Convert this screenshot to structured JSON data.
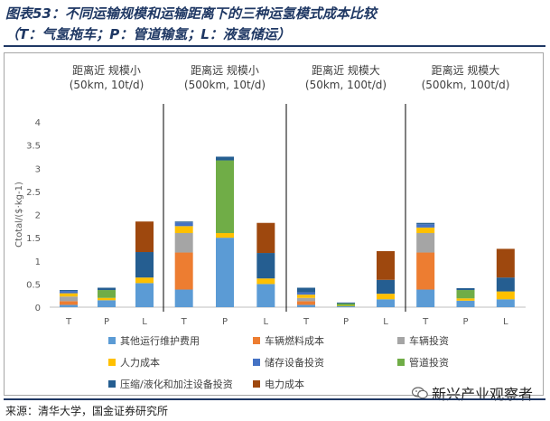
{
  "header": {
    "title": "图表53：不同运输规模和运输距离下的三种运氢模式成本比较",
    "subtitle": "（T：气氢拖车；P：管道输氢；L：液氢储运）"
  },
  "footer": {
    "source": "来源：清华大学，国金证券研究所",
    "watermark": "新兴产业观察者"
  },
  "chart_data": {
    "type": "bar",
    "stacked": true,
    "ylabel": "Ctotal/($·kg-1)",
    "ylim": [
      0,
      4
    ],
    "yticks": [
      "0",
      "0.5",
      "1",
      "1.5",
      "2",
      "2.5",
      "3",
      "3.5",
      "4"
    ],
    "categories": [
      "T",
      "P",
      "L"
    ],
    "panels": [
      {
        "title_line1": "距离近  规模小",
        "title_line2": "(50km, 10t/d)"
      },
      {
        "title_line1": "距离远  规模小",
        "title_line2": "(500km, 10t/d)"
      },
      {
        "title_line1": "距离近  规模大",
        "title_line2": "(50km, 100t/d)"
      },
      {
        "title_line1": "距离远  规模大",
        "title_line2": "(500km, 100t/d)"
      }
    ],
    "series": [
      {
        "name": "其他运行维护费用",
        "color": "#5b9bd5",
        "values": [
          [
            0.05,
            0.15,
            0.52
          ],
          [
            0.38,
            1.5,
            0.5
          ],
          [
            0.05,
            0.02,
            0.17
          ],
          [
            0.38,
            0.14,
            0.17
          ]
        ]
      },
      {
        "name": "车辆燃料成本",
        "color": "#ed7d31",
        "values": [
          [
            0.08,
            0.0,
            0.0
          ],
          [
            0.8,
            0.0,
            0.0
          ],
          [
            0.08,
            0.0,
            0.0
          ],
          [
            0.8,
            0.0,
            0.0
          ]
        ]
      },
      {
        "name": "车辆投资",
        "color": "#a5a5a5",
        "values": [
          [
            0.1,
            0.0,
            0.0
          ],
          [
            0.42,
            0.0,
            0.0
          ],
          [
            0.07,
            0.0,
            0.0
          ],
          [
            0.42,
            0.0,
            0.0
          ]
        ]
      },
      {
        "name": "人力成本",
        "color": "#ffc000",
        "values": [
          [
            0.07,
            0.05,
            0.12
          ],
          [
            0.15,
            0.1,
            0.12
          ],
          [
            0.07,
            0.01,
            0.12
          ],
          [
            0.12,
            0.05,
            0.17
          ]
        ]
      },
      {
        "name": "储存设备投资",
        "color": "#4472c4",
        "values": [
          [
            0.05,
            0.0,
            0.0
          ],
          [
            0.08,
            0.0,
            0.0
          ],
          [
            0.05,
            0.0,
            0.0
          ],
          [
            0.07,
            0.0,
            0.0
          ]
        ]
      },
      {
        "name": "管道投资",
        "color": "#70ad47",
        "values": [
          [
            0.0,
            0.17,
            0.0
          ],
          [
            0.0,
            1.57,
            0.0
          ],
          [
            0.0,
            0.05,
            0.0
          ],
          [
            0.0,
            0.18,
            0.0
          ]
        ]
      },
      {
        "name": "压缩/液化和加注设备投资",
        "color": "#255e91",
        "values": [
          [
            0.02,
            0.05,
            0.55
          ],
          [
            0.02,
            0.08,
            0.55
          ],
          [
            0.1,
            0.02,
            0.3
          ],
          [
            0.03,
            0.04,
            0.3
          ]
        ]
      },
      {
        "name": "电力成本",
        "color": "#9e480e",
        "values": [
          [
            0.0,
            0.0,
            0.66
          ],
          [
            0.0,
            0.0,
            0.65
          ],
          [
            0.0,
            0.0,
            0.62
          ],
          [
            0.0,
            0.0,
            0.62
          ]
        ]
      }
    ]
  }
}
